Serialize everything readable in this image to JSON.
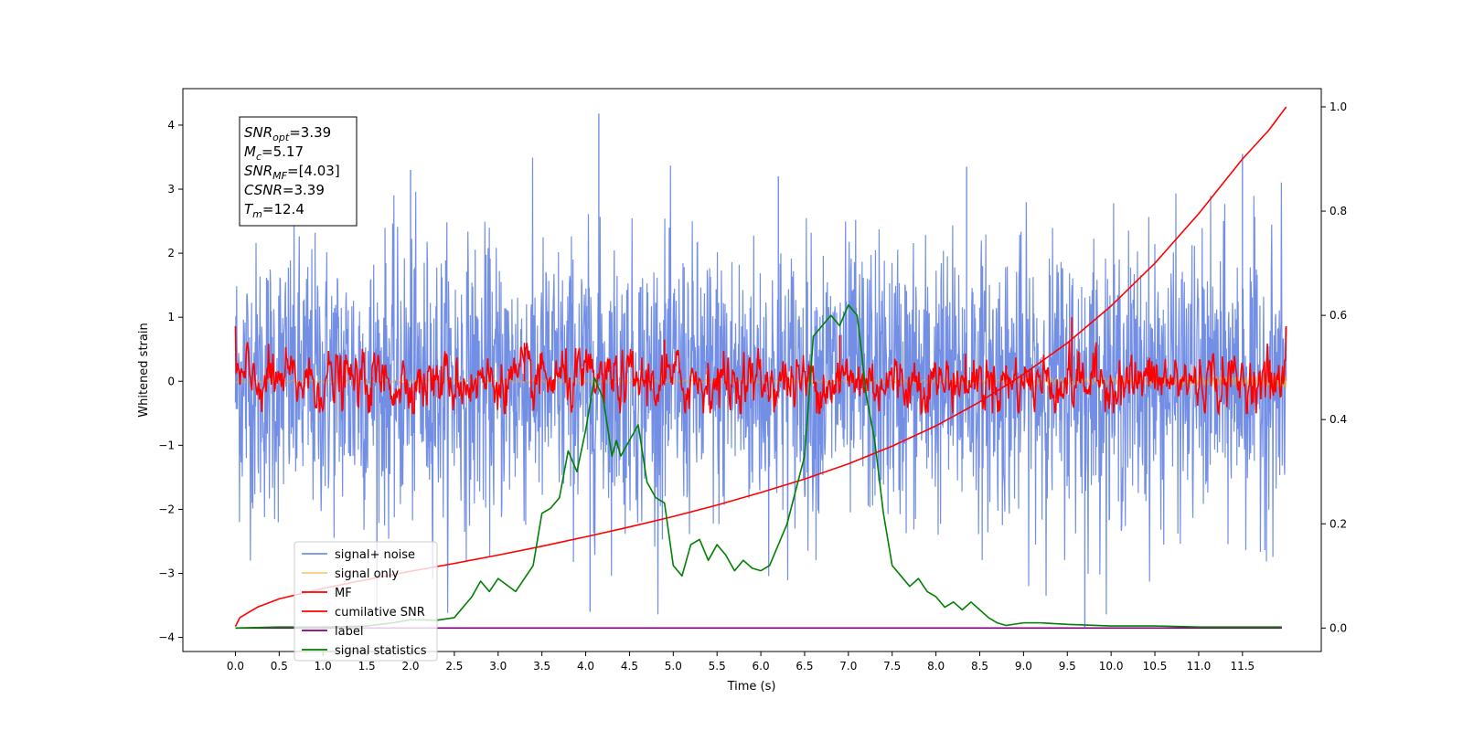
{
  "chart_data": {
    "type": "line",
    "title": "",
    "xlabel": "Time (s)",
    "ylabel": "Whitened strain",
    "y2label": "",
    "xlim": [
      -0.6,
      12.4
    ],
    "ylim": [
      -4.22,
      4.57
    ],
    "y2lim": [
      -0.045,
      1.035
    ],
    "x_ticks": [
      0.0,
      0.5,
      1.0,
      1.5,
      2.0,
      2.5,
      3.0,
      3.5,
      4.0,
      4.5,
      5.0,
      5.5,
      6.0,
      6.5,
      7.0,
      7.5,
      8.0,
      8.5,
      9.0,
      9.5,
      10.0,
      10.5,
      11.0,
      11.5
    ],
    "x_tick_labels": [
      "0.0",
      "0.5",
      "1.0",
      "1.5",
      "2.0",
      "2.5",
      "3.0",
      "3.5",
      "4.0",
      "4.5",
      "5.0",
      "5.5",
      "6.0",
      "6.5",
      "7.0",
      "7.5",
      "8.0",
      "8.5",
      "9.0",
      "9.5",
      "10.0",
      "10.5",
      "11.0",
      "11.5"
    ],
    "y_ticks": [
      -4,
      -3,
      -2,
      -1,
      0,
      1,
      2,
      3,
      4
    ],
    "y_tick_labels": [
      "−4",
      "−3",
      "−2",
      "−1",
      "0",
      "1",
      "2",
      "3",
      "4"
    ],
    "y2_ticks": [
      0.0,
      0.2,
      0.4,
      0.6,
      0.8,
      1.0
    ],
    "y2_tick_labels": [
      "0.0",
      "0.2",
      "0.4",
      "0.6",
      "0.8",
      "1.0"
    ],
    "grid": false,
    "legend_position": "lower-left",
    "stats_box": [
      {
        "main": "SNR",
        "sub": "opt",
        "value": "=3.39"
      },
      {
        "main": "M",
        "sub": "c",
        "value": "=5.17"
      },
      {
        "main": "SNR",
        "sub": "MF",
        "value": "=[4.03]"
      },
      {
        "main": "CSNR",
        "sub": "",
        "value": "=3.39"
      },
      {
        "main": "T",
        "sub": "m",
        "value": "=12.4"
      }
    ],
    "series": [
      {
        "name": "signal+ noise",
        "color": "#5b7be0",
        "axis": "left",
        "kind": "noise-band",
        "x_range": [
          0.0,
          12.0
        ],
        "typical_range": [
          -1.6,
          1.6
        ],
        "extreme_range": [
          -3.84,
          4.18
        ]
      },
      {
        "name": "signal only",
        "color": "#f5a623",
        "axis": "left",
        "kind": "chirp",
        "x_range": [
          0.0,
          12.0
        ],
        "final_amplitude": 0.12
      },
      {
        "name": "MF",
        "color": "#ff0000",
        "axis": "left",
        "kind": "noise-band",
        "x_range": [
          0.0,
          12.0
        ],
        "typical_range": [
          -0.45,
          0.45
        ],
        "extreme_range": [
          -0.5,
          1.0
        ]
      },
      {
        "name": "cumilative SNR",
        "color": "#ff0000",
        "axis": "right",
        "x": [
          0.0,
          0.05,
          0.25,
          0.5,
          1.0,
          1.5,
          2.0,
          2.5,
          3.0,
          3.5,
          4.0,
          4.5,
          5.0,
          5.5,
          6.0,
          6.5,
          7.0,
          7.5,
          8.0,
          8.5,
          9.0,
          9.5,
          10.0,
          10.5,
          11.0,
          11.5,
          11.8,
          12.0
        ],
        "y": [
          0.003,
          0.02,
          0.04,
          0.056,
          0.076,
          0.093,
          0.109,
          0.124,
          0.14,
          0.157,
          0.175,
          0.194,
          0.214,
          0.236,
          0.26,
          0.286,
          0.315,
          0.349,
          0.388,
          0.434,
          0.487,
          0.547,
          0.618,
          0.7,
          0.795,
          0.9,
          0.955,
          1.0
        ]
      },
      {
        "name": "label",
        "color": "#800080",
        "axis": "right",
        "x": [
          0.0,
          11.95
        ],
        "y": [
          0.0,
          0.0
        ]
      },
      {
        "name": "signal statistics",
        "color": "#008000",
        "axis": "right",
        "x": [
          0.0,
          0.5,
          1.0,
          1.5,
          1.8,
          2.0,
          2.3,
          2.5,
          2.6,
          2.7,
          2.8,
          2.9,
          3.0,
          3.2,
          3.4,
          3.5,
          3.6,
          3.7,
          3.8,
          3.9,
          4.0,
          4.1,
          4.2,
          4.3,
          4.35,
          4.4,
          4.5,
          4.6,
          4.7,
          4.8,
          4.9,
          5.0,
          5.1,
          5.2,
          5.3,
          5.4,
          5.5,
          5.6,
          5.7,
          5.8,
          5.9,
          6.0,
          6.1,
          6.3,
          6.5,
          6.6,
          6.7,
          6.8,
          6.9,
          7.0,
          7.1,
          7.15,
          7.2,
          7.3,
          7.4,
          7.5,
          7.6,
          7.7,
          7.8,
          7.9,
          8.0,
          8.1,
          8.2,
          8.3,
          8.4,
          8.5,
          8.6,
          8.7,
          8.8,
          9.0,
          9.2,
          9.5,
          10.0,
          10.5,
          11.0,
          11.5,
          11.95
        ],
        "y": [
          0.0,
          0.002,
          0.002,
          0.004,
          0.01,
          0.016,
          0.015,
          0.02,
          0.04,
          0.06,
          0.09,
          0.07,
          0.095,
          0.07,
          0.12,
          0.22,
          0.23,
          0.25,
          0.34,
          0.3,
          0.38,
          0.48,
          0.44,
          0.33,
          0.36,
          0.33,
          0.36,
          0.39,
          0.28,
          0.25,
          0.24,
          0.12,
          0.1,
          0.16,
          0.17,
          0.13,
          0.16,
          0.14,
          0.11,
          0.13,
          0.115,
          0.11,
          0.12,
          0.2,
          0.33,
          0.56,
          0.58,
          0.6,
          0.58,
          0.62,
          0.6,
          0.53,
          0.45,
          0.36,
          0.22,
          0.12,
          0.1,
          0.08,
          0.095,
          0.07,
          0.06,
          0.04,
          0.05,
          0.035,
          0.05,
          0.035,
          0.02,
          0.01,
          0.005,
          0.01,
          0.01,
          0.007,
          0.004,
          0.004,
          0.002,
          0.002,
          0.002
        ]
      }
    ]
  }
}
